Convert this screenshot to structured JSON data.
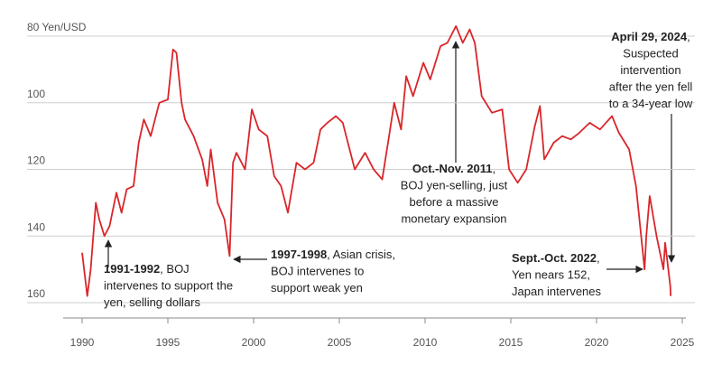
{
  "chart_data": {
    "type": "line",
    "color": "#d9262a",
    "grid": true,
    "y_inverted": true,
    "xlim": [
      1989,
      2026
    ],
    "xticks": [
      1990,
      1995,
      2000,
      2005,
      2010,
      2015,
      2020,
      2025
    ],
    "ylim": [
      80,
      160
    ],
    "yticks": [
      {
        "value": 80,
        "label": "80 Yen/USD"
      },
      100,
      120,
      140,
      160
    ],
    "x": [
      1990.0,
      1990.3,
      1990.5,
      1990.8,
      1991.0,
      1991.3,
      1991.6,
      1992.0,
      1992.3,
      1992.6,
      1993.0,
      1993.3,
      1993.6,
      1994.0,
      1994.5,
      1995.0,
      1995.3,
      1995.5,
      1995.8,
      1996.0,
      1996.5,
      1997.0,
      1997.3,
      1997.5,
      1997.9,
      1998.3,
      1998.6,
      1998.8,
      1999.0,
      1999.5,
      1999.9,
      2000.3,
      2000.8,
      2001.2,
      2001.6,
      2002.0,
      2002.5,
      2003.0,
      2003.5,
      2003.9,
      2004.3,
      2004.8,
      2005.2,
      2005.9,
      2006.5,
      2007.0,
      2007.5,
      2007.9,
      2008.2,
      2008.6,
      2008.9,
      2009.3,
      2009.9,
      2010.3,
      2010.9,
      2011.3,
      2011.8,
      2012.2,
      2012.6,
      2012.9,
      2013.3,
      2013.9,
      2014.5,
      2014.9,
      2015.4,
      2015.9,
      2016.4,
      2016.7,
      2016.95,
      2017.5,
      2018.0,
      2018.5,
      2019.0,
      2019.6,
      2020.2,
      2020.9,
      2021.3,
      2021.9,
      2022.3,
      2022.8,
      2022.9,
      2023.1,
      2023.5,
      2023.9,
      2024.0,
      2024.3,
      2024.32
    ],
    "series": [
      {
        "name": "Yen/USD",
        "color": "#d9262a",
        "values": [
          145,
          158,
          150,
          130,
          135,
          140,
          137,
          127,
          133,
          126,
          125,
          112,
          105,
          110,
          100,
          99,
          84,
          85,
          100,
          105,
          110,
          117,
          125,
          114,
          130,
          135,
          146,
          118,
          115,
          120,
          102,
          108,
          110,
          122,
          125,
          133,
          118,
          120,
          118,
          108,
          106,
          104,
          106,
          120,
          115,
          120,
          123,
          110,
          100,
          108,
          92,
          98,
          88,
          93,
          83,
          82,
          77,
          82,
          78,
          82,
          98,
          103,
          102,
          120,
          124,
          120,
          107,
          101,
          117,
          112,
          110,
          111,
          109,
          106,
          108,
          104,
          109,
          114,
          125,
          150,
          140,
          128,
          140,
          150,
          142,
          155,
          158
        ]
      }
    ],
    "annotations": [
      {
        "bold": "1991-1992",
        "lines": [
          ", BOJ",
          "intervenes to support the",
          "yen, selling dollars"
        ]
      },
      {
        "bold": "1997-1998",
        "lines": [
          ", Asian crisis,",
          "BOJ intervenes to",
          "support weak yen"
        ]
      },
      {
        "bold": "Oct.-Nov. 2011",
        "lines": [
          ",",
          "BOJ yen-selling, just",
          "before a massive",
          "monetary expansion"
        ]
      },
      {
        "bold": "April 29, 2024",
        "lines": [
          ",",
          "Suspected",
          "intervention",
          "after the yen fell",
          "to a 34-year low"
        ]
      },
      {
        "bold": "Sept.-Oct. 2022",
        "lines": [
          ",",
          "Yen nears 152,",
          "Japan intervenes"
        ]
      }
    ]
  }
}
